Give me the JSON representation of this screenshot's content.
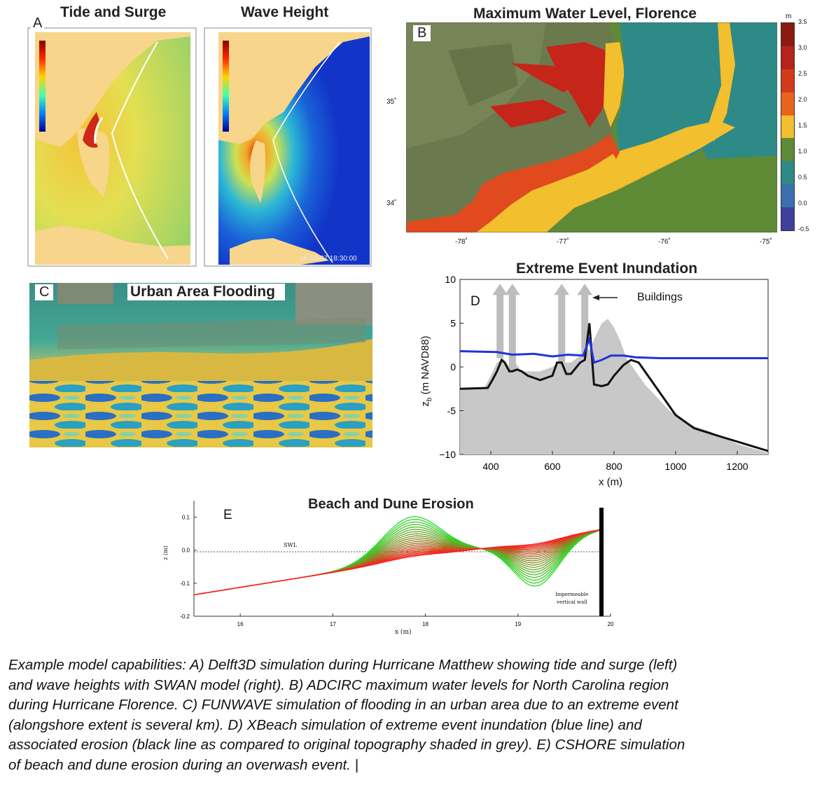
{
  "panel_a": {
    "letter": "A",
    "left_title": "Tide and Surge",
    "right_title": "Wave Height",
    "timestamp": "16-10-07 18:30:00"
  },
  "panel_b": {
    "letter": "B",
    "title": "Maximum Water Level, Florence",
    "colorbar_unit": "m",
    "colorbar_ticks": [
      "3.5",
      "3.0",
      "2.5",
      "2.0",
      "1.5",
      "1.0",
      "0.5",
      "0.0",
      "-0.5"
    ],
    "colorbar_colors": [
      "#8c1a10",
      "#b5231a",
      "#d23a1a",
      "#e8641e",
      "#f2bf2e",
      "#5f8a36",
      "#2d8a86",
      "#3b6fb0",
      "#3f3f9c"
    ],
    "lon_ticks": [
      "-78˚",
      "-77˚",
      "-76˚",
      "-75˚"
    ],
    "lat_ticks": [
      "35˚",
      "34˚"
    ]
  },
  "panel_c": {
    "letter": "C",
    "title": "Urban Area Flooding"
  },
  "panel_d": {
    "letter": "D",
    "title": "Extreme Event Inundation",
    "annotation": "Buildings",
    "xlabel": "x (m)",
    "ylabel": "z",
    "ylabel_sub": "b",
    "ylabel_rest": " (m NAVD88)",
    "x_ticks": [
      "400",
      "600",
      "800",
      "1000",
      "1200"
    ],
    "y_ticks": [
      "10",
      "5",
      "0",
      "-5",
      "−10"
    ]
  },
  "panel_e": {
    "letter": "E",
    "title": "Beach and Dune Erosion",
    "swl_label": "SWL",
    "wall_label_1": "Impermeable",
    "wall_label_2": "vertical wall",
    "xlabel": "x (m)",
    "ylabel": "z (m)",
    "x_ticks": [
      "16",
      "17",
      "18",
      "19",
      "20"
    ],
    "y_ticks": [
      "0.1",
      "0.0",
      "-0.1",
      "-0.2"
    ]
  },
  "caption_lines": [
    "Example model capabilities: A) Delft3D simulation during Hurricane Matthew showing tide and surge (left)",
    "and wave heights with SWAN model (right). B) ADCIRC maximum water levels for North Carolina region",
    "during Hurricane Florence. C) FUNWAVE simulation of flooding in an urban area due to an extreme event",
    "(alongshore extent is several km). D) XBeach simulation of extreme event inundation (blue line) and",
    "associated erosion (black line as compared to original topography shaded in grey). E) CSHORE simulation",
    "of beach and dune erosion during an overwash event. |"
  ]
}
